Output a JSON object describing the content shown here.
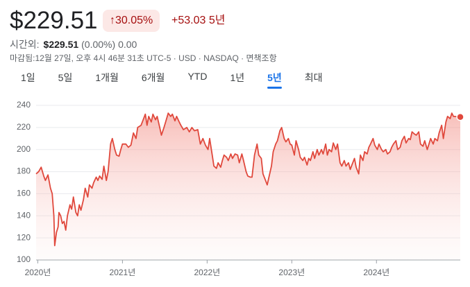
{
  "header": {
    "price": "$229.51",
    "change_percent": "30.05%",
    "change": "+53.03",
    "period": "5년"
  },
  "after_hours": {
    "label": "시간외:",
    "price": "$229.51",
    "change_percent": "(0.00%)",
    "change": "0.00"
  },
  "status": "마감됨:12월 27일, 오후 4시 46분 31초 UTC-5 · USD · NASDAQ · 면책조항",
  "tabs": {
    "items": [
      "1일",
      "5일",
      "1개월",
      "6개월",
      "YTD",
      "1년",
      "5년",
      "최대"
    ],
    "selected": 6
  },
  "chart_data": {
    "type": "line",
    "x": [
      2019.98,
      2020.01,
      2020.04,
      2020.07,
      2020.09,
      2020.12,
      2020.15,
      2020.17,
      2020.19,
      2020.2,
      2020.22,
      2020.24,
      2020.25,
      2020.27,
      2020.29,
      2020.31,
      2020.33,
      2020.35,
      2020.38,
      2020.4,
      2020.42,
      2020.45,
      2020.47,
      2020.49,
      2020.51,
      2020.54,
      2020.56,
      2020.59,
      2020.61,
      2020.64,
      2020.66,
      2020.69,
      2020.71,
      2020.73,
      2020.76,
      2020.78,
      2020.81,
      2020.83,
      2020.86,
      2020.88,
      2020.91,
      2020.93,
      2020.96,
      2020.98,
      2021.0,
      2021.04,
      2021.07,
      2021.1,
      2021.13,
      2021.16,
      2021.18,
      2021.22,
      2021.25,
      2021.27,
      2021.29,
      2021.31,
      2021.34,
      2021.36,
      2021.39,
      2021.41,
      2021.44,
      2021.46,
      2021.49,
      2021.51,
      2021.54,
      2021.57,
      2021.59,
      2021.62,
      2021.64,
      2021.67,
      2021.69,
      2021.72,
      2021.76,
      2021.79,
      2021.82,
      2021.85,
      2021.89,
      2021.92,
      2021.95,
      2021.98,
      2022.01,
      2022.03,
      2022.06,
      2022.08,
      2022.11,
      2022.13,
      2022.16,
      2022.18,
      2022.2,
      2022.23,
      2022.25,
      2022.28,
      2022.3,
      2022.33,
      2022.36,
      2022.38,
      2022.41,
      2022.43,
      2022.46,
      2022.48,
      2022.51,
      2022.53,
      2022.56,
      2022.59,
      2022.61,
      2022.64,
      2022.66,
      2022.69,
      2022.71,
      2022.73,
      2022.76,
      2022.78,
      2022.81,
      2022.83,
      2022.86,
      2022.88,
      2022.91,
      2022.93,
      2022.96,
      2022.98,
      2023.0,
      2023.03,
      2023.05,
      2023.08,
      2023.1,
      2023.13,
      2023.15,
      2023.18,
      2023.2,
      2023.22,
      2023.25,
      2023.27,
      2023.3,
      2023.32,
      2023.35,
      2023.37,
      2023.4,
      2023.42,
      2023.44,
      2023.47,
      2023.49,
      2023.52,
      2023.54,
      2023.57,
      2023.59,
      2023.62,
      2023.64,
      2023.67,
      2023.69,
      2023.71,
      2023.74,
      2023.76,
      2023.79,
      2023.81,
      2023.84,
      2023.86,
      2023.89,
      2023.91,
      2023.93,
      2023.96,
      2023.98,
      2024.01,
      2024.03,
      2024.06,
      2024.08,
      2024.11,
      2024.13,
      2024.16,
      2024.18,
      2024.2,
      2024.23,
      2024.25,
      2024.28,
      2024.3,
      2024.33,
      2024.35,
      2024.38,
      2024.4,
      2024.42,
      2024.45,
      2024.47,
      2024.5,
      2024.52,
      2024.55,
      2024.57,
      2024.6,
      2024.62,
      2024.64,
      2024.67,
      2024.69,
      2024.72,
      2024.74,
      2024.77,
      2024.79,
      2024.82,
      2024.84,
      2024.87,
      2024.89,
      2024.91,
      2024.99
    ],
    "series": [
      {
        "color": "#e0483c",
        "values": [
          178,
          180,
          184,
          176,
          172,
          177,
          165,
          160,
          140,
          113,
          125,
          130,
          143,
          140,
          133,
          135,
          127,
          140,
          150,
          146,
          157,
          143,
          140,
          150,
          145,
          155,
          165,
          157,
          168,
          165,
          170,
          175,
          172,
          176,
          173,
          185,
          172,
          180,
          205,
          210,
          200,
          195,
          194,
          200,
          205,
          205,
          202,
          204,
          215,
          210,
          220,
          222,
          228,
          232,
          222,
          230,
          225,
          232,
          227,
          230,
          220,
          213,
          220,
          225,
          233,
          230,
          232,
          226,
          230,
          225,
          222,
          218,
          220,
          216,
          220,
          217,
          218,
          205,
          210,
          204,
          200,
          210,
          195,
          185,
          183,
          188,
          184,
          190,
          195,
          193,
          190,
          196,
          192,
          196,
          195,
          188,
          196,
          190,
          180,
          176,
          175,
          175,
          195,
          205,
          195,
          192,
          178,
          172,
          168,
          175,
          185,
          198,
          205,
          208,
          217,
          220,
          210,
          207,
          210,
          205,
          204,
          195,
          208,
          200,
          193,
          190,
          193,
          186,
          192,
          190,
          198,
          192,
          200,
          195,
          200,
          196,
          205,
          195,
          200,
          198,
          206,
          200,
          205,
          188,
          185,
          190,
          185,
          188,
          182,
          186,
          192,
          184,
          178,
          195,
          190,
          198,
          196,
          202,
          205,
          210,
          204,
          200,
          205,
          200,
          198,
          200,
          196,
          198,
          202,
          205,
          208,
          200,
          202,
          208,
          212,
          206,
          210,
          209,
          216,
          214,
          213,
          216,
          205,
          203,
          208,
          200,
          205,
          210,
          205,
          210,
          208,
          215,
          222,
          210,
          225,
          230,
          228,
          233,
          230,
          229.51
        ]
      }
    ],
    "xlim": [
      2019.98,
      2024.99
    ],
    "ylim": [
      100,
      240
    ],
    "xticks": [
      {
        "value": 2020,
        "label": "2020년"
      },
      {
        "value": 2021,
        "label": "2021년"
      },
      {
        "value": 2022,
        "label": "2022년"
      },
      {
        "value": 2023,
        "label": "2023년"
      },
      {
        "value": 2024,
        "label": "2024년"
      }
    ],
    "yticks": [
      100,
      120,
      140,
      160,
      180,
      200,
      220,
      240
    ],
    "grid": true
  }
}
